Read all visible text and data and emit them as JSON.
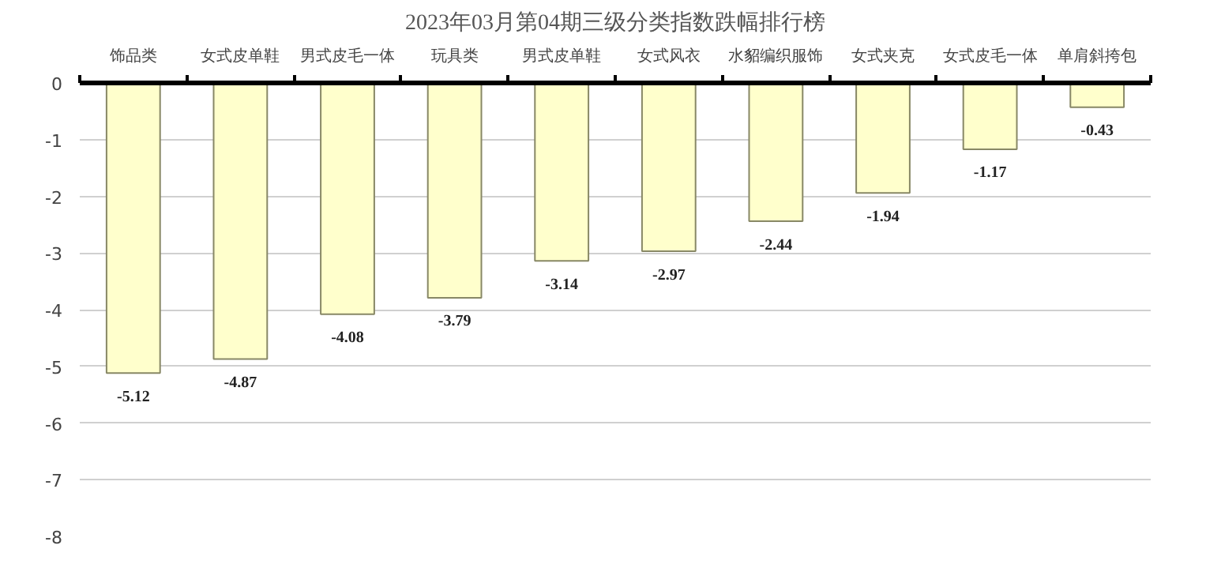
{
  "chart_data": {
    "type": "bar",
    "title": "2023年03月第04期三级分类指数跌幅排行榜",
    "categories": [
      "饰品类",
      "女式皮单鞋",
      "男式皮毛一体",
      "玩具类",
      "男式皮单鞋",
      "女式风衣",
      "水貂编织服饰",
      "女式夹克",
      "女式皮毛一体",
      "单肩斜挎包"
    ],
    "values": [
      -5.12,
      -4.87,
      -4.08,
      -3.79,
      -3.14,
      -2.97,
      -2.44,
      -1.94,
      -1.17,
      -0.43
    ],
    "color": "#ffffcc",
    "ylim": [
      -8,
      0
    ],
    "yticks": [
      0,
      -1,
      -2,
      -3,
      -4,
      -5,
      -6,
      -7,
      -8
    ],
    "grid": "y",
    "data_labels": true
  }
}
